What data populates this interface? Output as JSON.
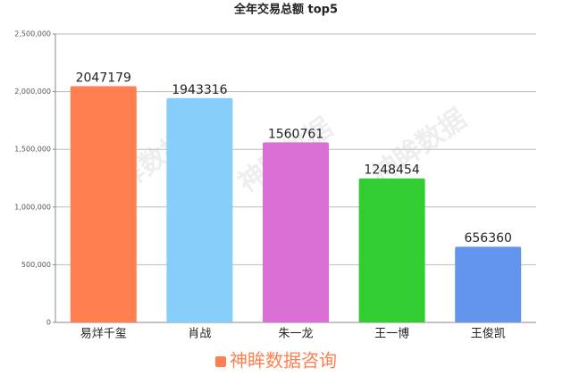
{
  "chart_data": {
    "type": "bar",
    "title": "全年交易总额 top5",
    "categories": [
      "易烊千玺",
      "肖战",
      "朱一龙",
      "王一博",
      "王俊凯"
    ],
    "series": [
      {
        "name": "神眸数据咨询",
        "color": "#ff7f50",
        "colors": [
          "#ff7f50",
          "#87cefa",
          "#da70d6",
          "#32cd32",
          "#6495ed"
        ],
        "values": [
          2047179,
          1943316,
          1560761,
          1248454,
          656360
        ]
      }
    ],
    "ylim": [
      0,
      2500000
    ],
    "yticks": [
      0,
      {
        "value": 500000,
        "label": "500,000"
      },
      {
        "value": 1000000,
        "label": "1,000,000"
      },
      {
        "value": 1500000,
        "label": "1,500,000"
      },
      {
        "value": 2000000,
        "label": "2,000,000"
      },
      {
        "value": 2500000,
        "label": "2,500,000"
      }
    ],
    "grid": true,
    "legend": "bottom",
    "watermark": "神眸数据"
  }
}
